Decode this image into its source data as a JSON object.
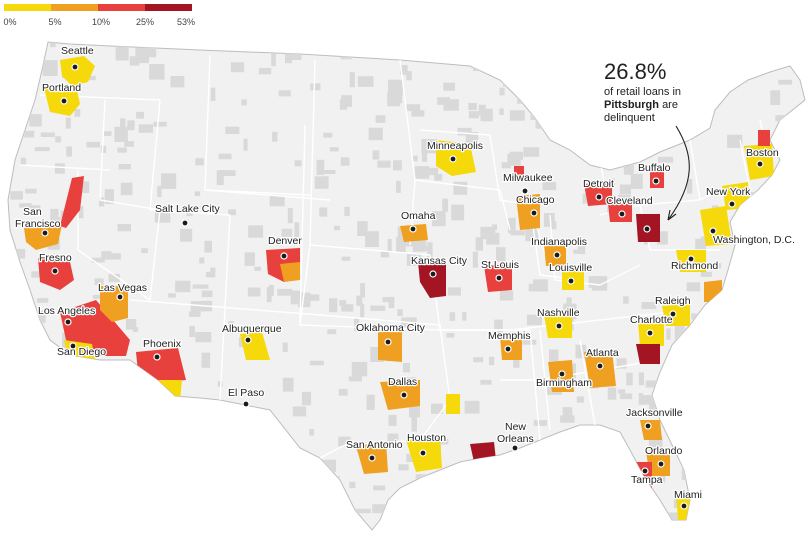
{
  "legend": {
    "ticks": [
      "0%",
      "5%",
      "10%",
      "25%",
      "53%"
    ],
    "colors": [
      "#f5d90a",
      "#f0a020",
      "#e8403c",
      "#a31522"
    ]
  },
  "colors": {
    "land": "#f1f1f1",
    "county_noise": "#d9d9d9",
    "state_border": "#ffffff",
    "dot": "#1a1a1a"
  },
  "callout": {
    "value": "26.8%",
    "line1": "of retail loans in",
    "city": "Pittsburgh",
    "line2": "are",
    "line3": "delinquent"
  },
  "cities": [
    {
      "name": "Seattle",
      "bin": 0
    },
    {
      "name": "Portland",
      "bin": 0
    },
    {
      "name": "San Francisco",
      "bin": 1
    },
    {
      "name": "Fresno",
      "bin": 2
    },
    {
      "name": "Los Angeles",
      "bin": 2
    },
    {
      "name": "San Diego",
      "bin": 0
    },
    {
      "name": "Las Vegas",
      "bin": 1
    },
    {
      "name": "Salt Lake City",
      "bin": null
    },
    {
      "name": "Phoenix",
      "bin": 2
    },
    {
      "name": "Denver",
      "bin": 2
    },
    {
      "name": "Albuquerque",
      "bin": 0
    },
    {
      "name": "El Paso",
      "bin": null
    },
    {
      "name": "Minneapolis",
      "bin": 0
    },
    {
      "name": "Omaha",
      "bin": 1
    },
    {
      "name": "Kansas City",
      "bin": 3
    },
    {
      "name": "Oklahoma City",
      "bin": 1
    },
    {
      "name": "Dallas",
      "bin": 1
    },
    {
      "name": "San Antonio",
      "bin": 1
    },
    {
      "name": "Houston",
      "bin": 0
    },
    {
      "name": "Milwaukee",
      "bin": 2
    },
    {
      "name": "Chicago",
      "bin": 1
    },
    {
      "name": "Detroit",
      "bin": 2
    },
    {
      "name": "St Louis",
      "bin": 2
    },
    {
      "name": "Indianapolis",
      "bin": 1
    },
    {
      "name": "Louisville",
      "bin": 0
    },
    {
      "name": "Memphis",
      "bin": 1
    },
    {
      "name": "Nashville",
      "bin": 0
    },
    {
      "name": "Birmingham",
      "bin": 1
    },
    {
      "name": "Atlanta",
      "bin": 1
    },
    {
      "name": "New Orleans",
      "bin": 3
    },
    {
      "name": "Buffalo",
      "bin": 2
    },
    {
      "name": "Cleveland",
      "bin": 2
    },
    {
      "name": "Pittsburgh",
      "bin": 3
    },
    {
      "name": "Boston",
      "bin": 0
    },
    {
      "name": "New York",
      "bin": 0
    },
    {
      "name": "Washington, D.C.",
      "bin": 0
    },
    {
      "name": "Richmond",
      "bin": 0
    },
    {
      "name": "Raleigh",
      "bin": 0
    },
    {
      "name": "Charlotte",
      "bin": 0
    },
    {
      "name": "Jacksonville",
      "bin": 1
    },
    {
      "name": "Orlando",
      "bin": 1
    },
    {
      "name": "Tampa",
      "bin": 1
    },
    {
      "name": "Miami",
      "bin": 0
    }
  ]
}
